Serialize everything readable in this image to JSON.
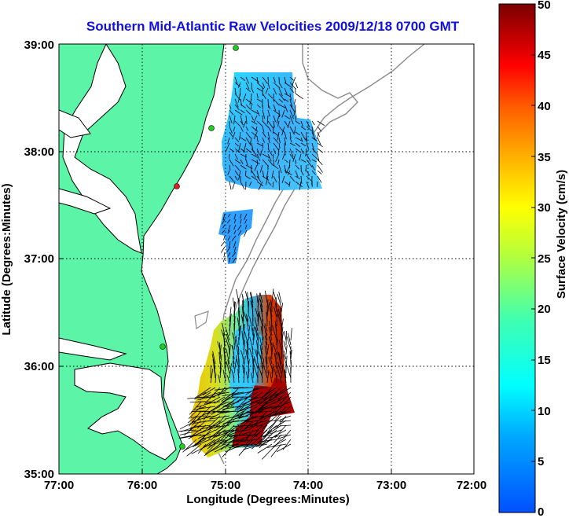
{
  "title": "Southern Mid-Atlantic Raw Velocities 2009/12/18 0700 GMT",
  "x_axis": {
    "label": "Longitude (Degrees:Minutes)",
    "ticks": [
      "77:00",
      "76:00",
      "75:00",
      "74:00",
      "73:00",
      "72:00"
    ]
  },
  "y_axis": {
    "label": "Latitude (Degrees:Minutes)",
    "ticks": [
      "39:00",
      "38:00",
      "37:00",
      "36:00",
      "35:00"
    ]
  },
  "colorbar": {
    "label": "Surface Velocity (cm/s)",
    "ticks": [
      "50",
      "45",
      "40",
      "35",
      "30",
      "25",
      "20",
      "15",
      "10",
      "5",
      "0"
    ],
    "range": [
      0,
      50
    ],
    "colormap": "jet"
  },
  "colors": {
    "land": "#5cf5a8",
    "title": "#1010e0",
    "coastline": "#000000",
    "isobath": "#8a8a8a",
    "station_green": "#22cc22",
    "station_red": "#e02020"
  },
  "map": {
    "lon_range": [
      -77,
      -72
    ],
    "lat_range": [
      35,
      39
    ],
    "grid": "dotted"
  }
}
